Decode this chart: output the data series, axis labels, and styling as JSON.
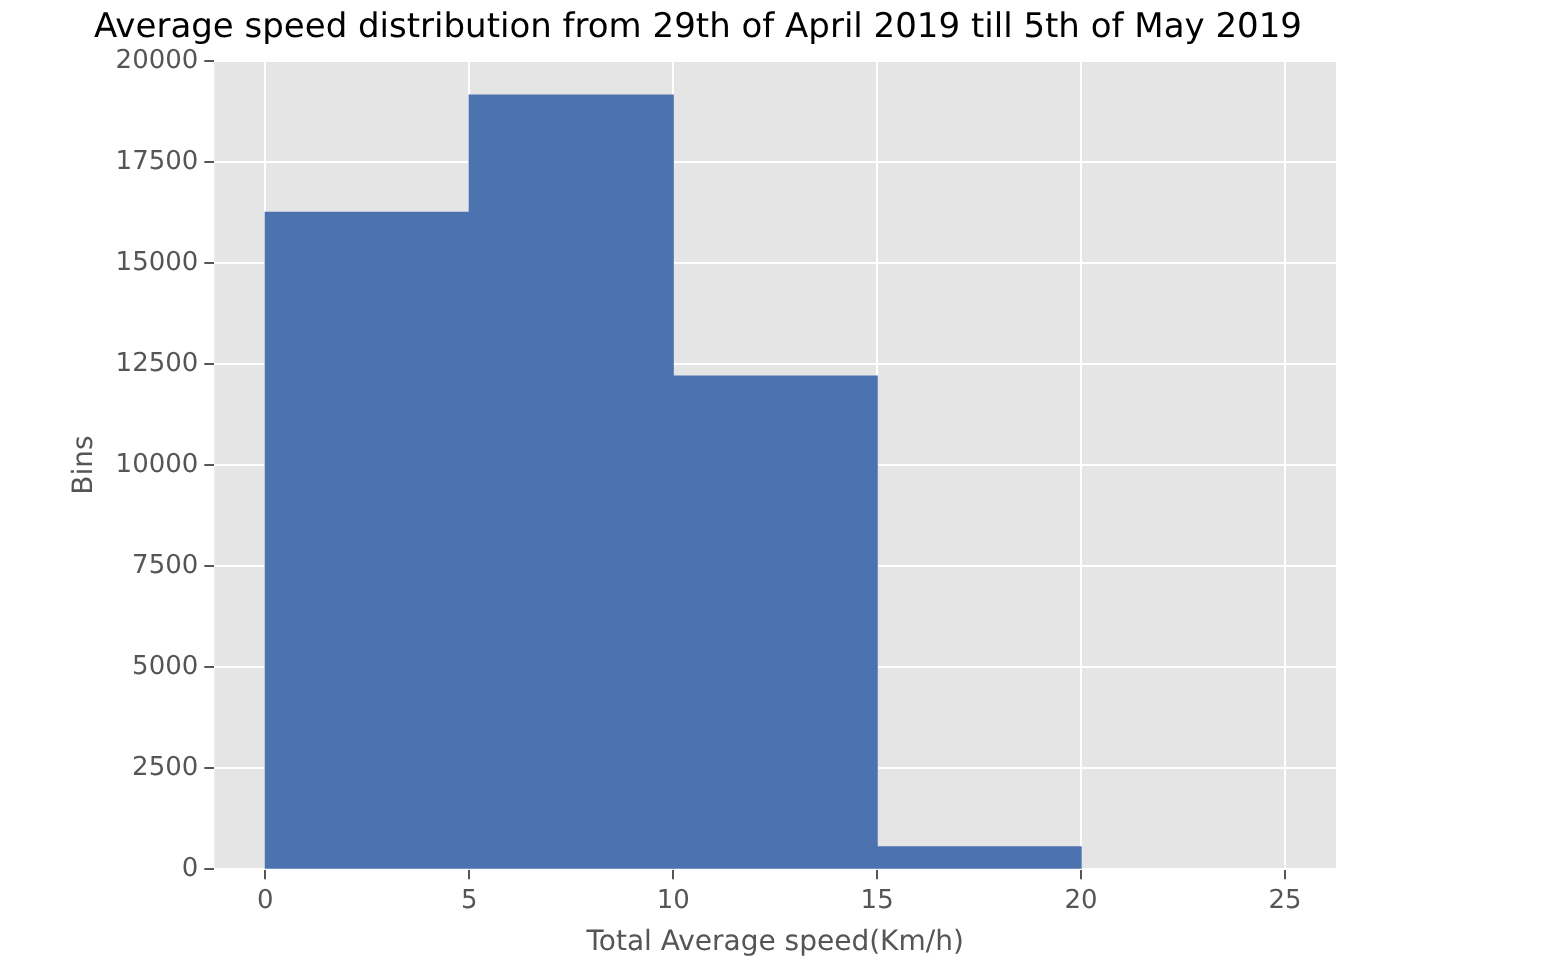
{
  "chart_data": {
    "type": "histogram",
    "title": "Average speed distribution from 29th of April 2019 till 5th of May 2019",
    "xlabel": "Total Average speed(Km/h)",
    "ylabel": "Bins",
    "bins": [
      0,
      5,
      10,
      15,
      20
    ],
    "values": [
      16250,
      19150,
      12200,
      550
    ],
    "color": "#4c72b0",
    "xlim": [
      -1.25,
      26.25
    ],
    "xticks": [
      0,
      5,
      10,
      15,
      20,
      25
    ],
    "ylim": [
      0,
      20000
    ],
    "yticks": [
      0,
      2500,
      5000,
      7500,
      10000,
      12500,
      15000,
      17500,
      20000
    ],
    "grid": true
  }
}
